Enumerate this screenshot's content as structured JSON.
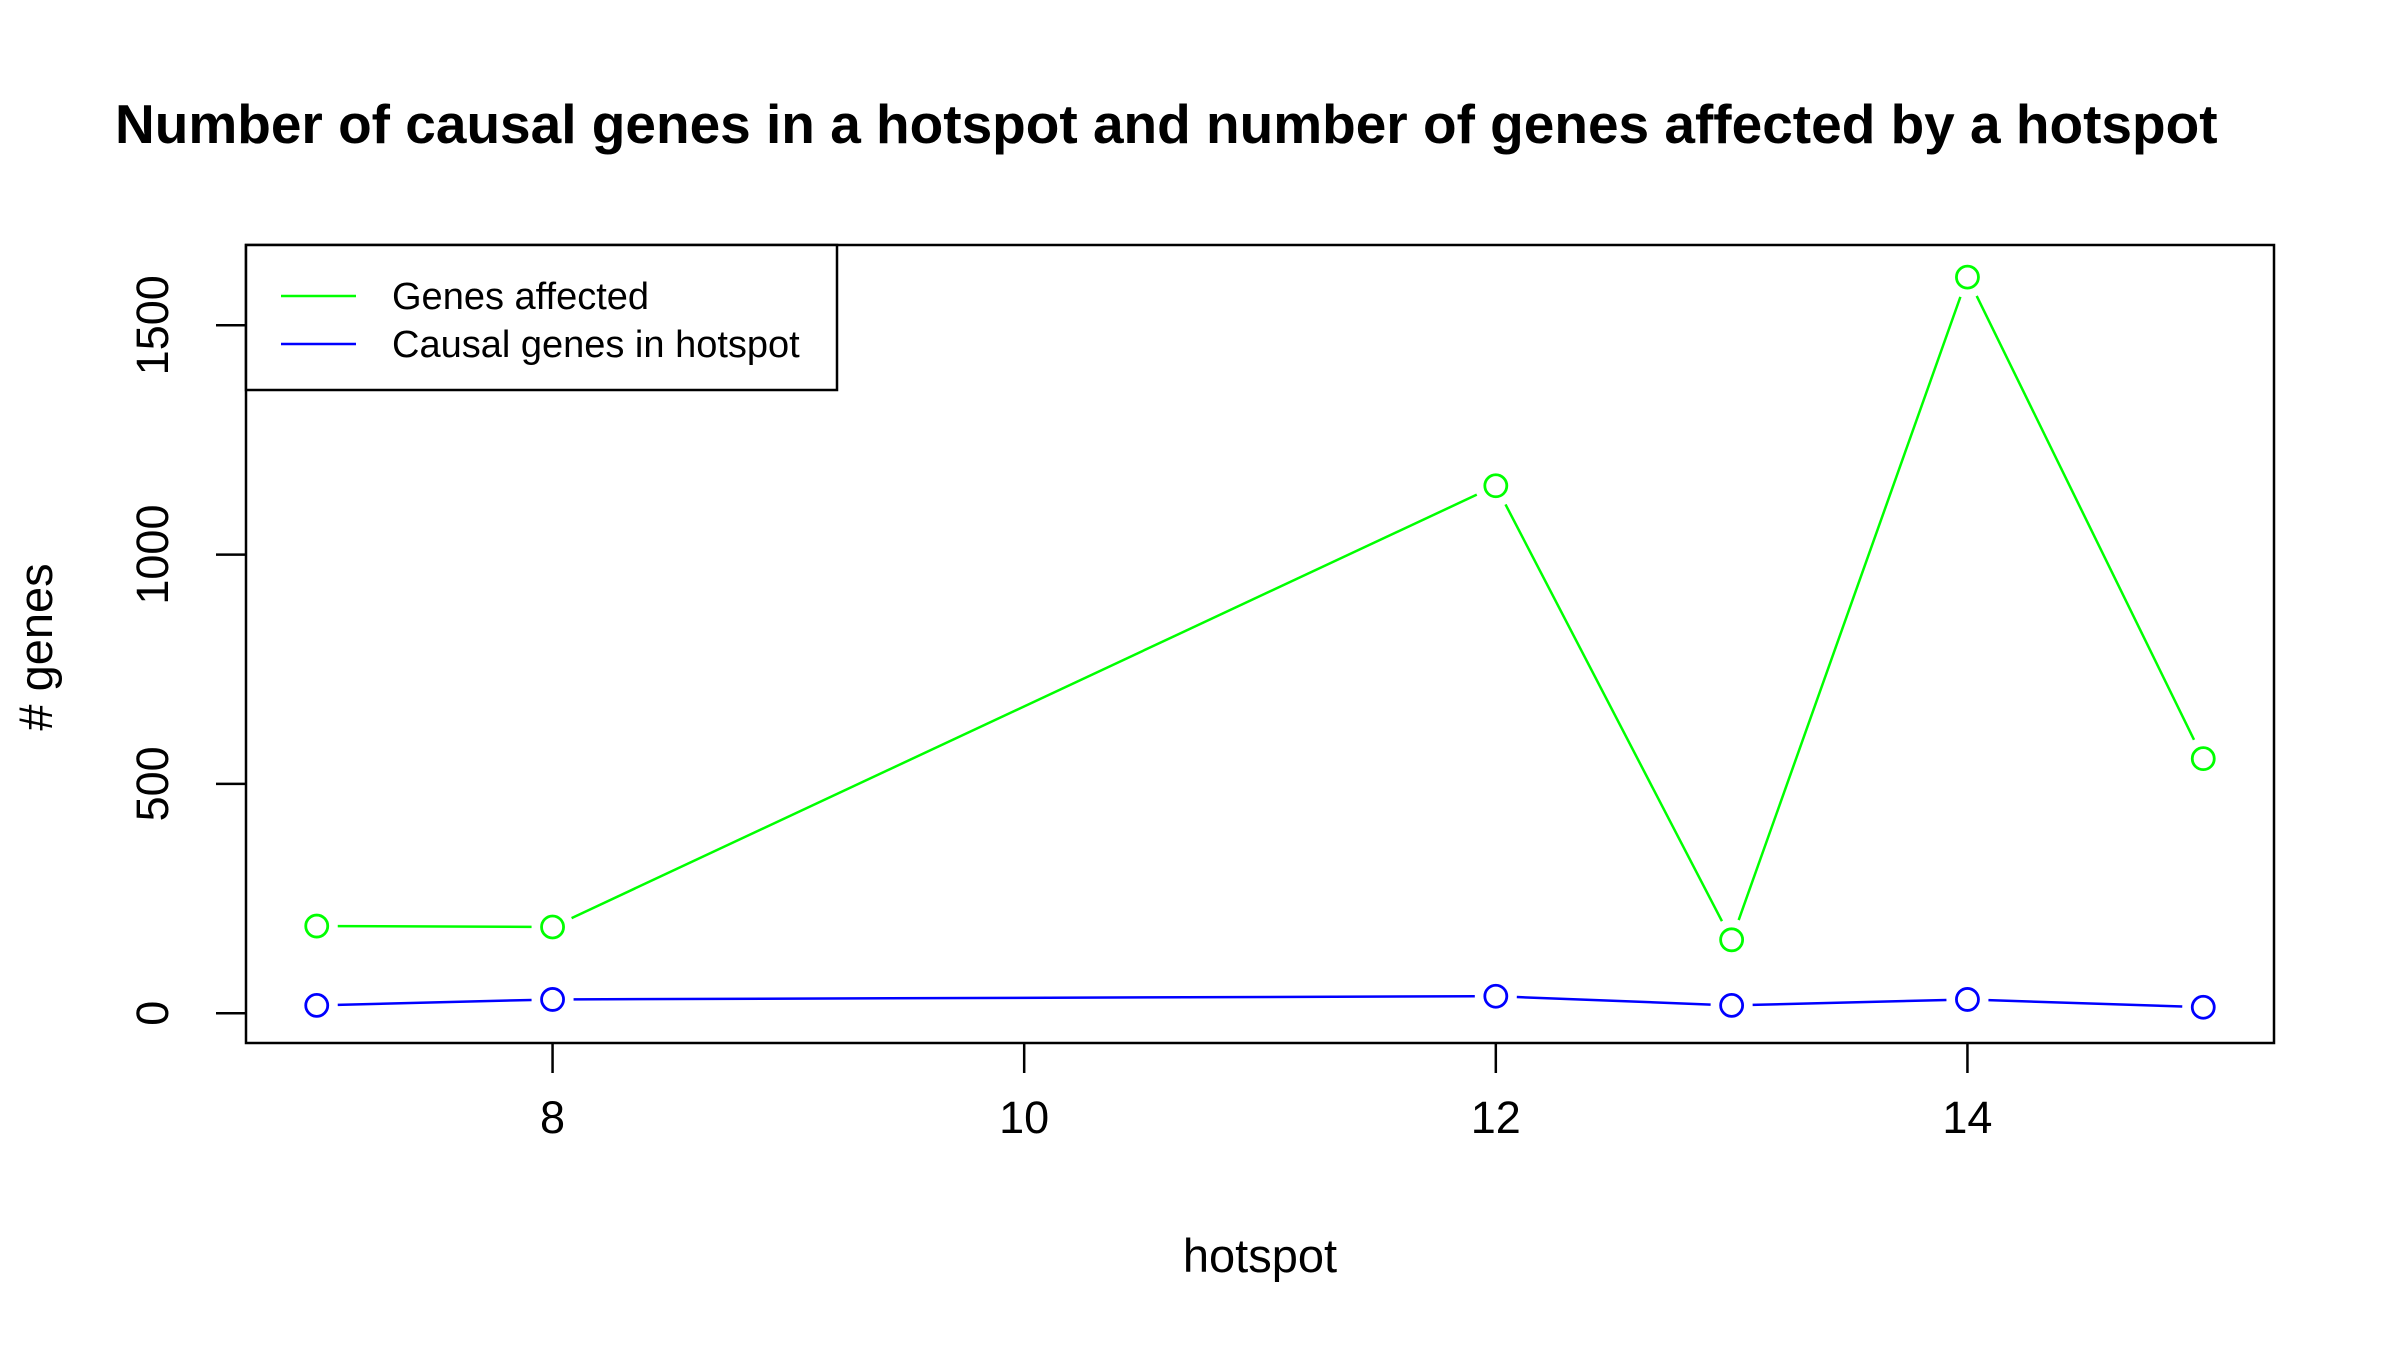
{
  "chart_data": {
    "type": "line",
    "title": "Number of causal genes in a hotspot and number of genes affected by a hotspot",
    "xlabel": "hotspot",
    "ylabel": "# genes",
    "x": [
      7,
      8,
      12,
      13,
      14,
      15
    ],
    "xticks": [
      8,
      10,
      12,
      14
    ],
    "yticks": [
      0,
      500,
      1000,
      1500
    ],
    "xlim": [
      6.7,
      15.3
    ],
    "ylim": [
      -65,
      1675
    ],
    "grid": false,
    "legend_position": "top-left",
    "marker": "open-circle",
    "series": [
      {
        "name": "Genes affected",
        "color": "#00ff00",
        "values": [
          190,
          188,
          1150,
          160,
          1605,
          555
        ]
      },
      {
        "name": "Causal genes in hotspot",
        "color": "#0000ff",
        "values": [
          17,
          30,
          37,
          17,
          30,
          13
        ]
      }
    ]
  }
}
